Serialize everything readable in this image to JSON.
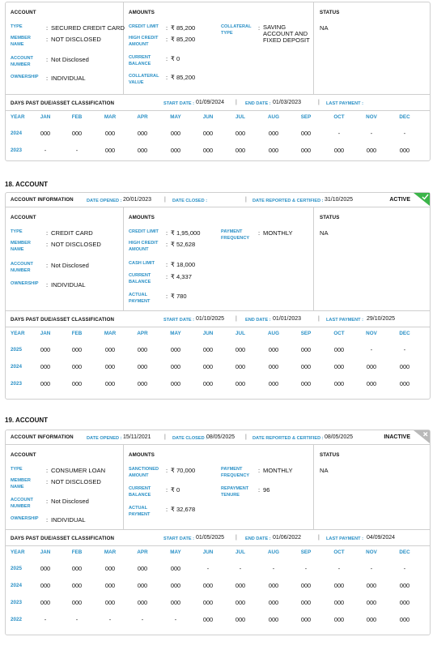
{
  "labels": {
    "account": "ACCOUNT",
    "amounts": "AMOUNTS",
    "status": "STATUS",
    "type": "TYPE",
    "member_name": "MEMBER NAME",
    "account_number": "ACCOUNT NUMBER",
    "ownership": "OWNERSHIP",
    "credit_limit": "CREDIT LIMIT",
    "high_credit_amount": "HIGH CREDIT AMOUNT",
    "current_balance": "CURRENT BALANCE",
    "collateral_value": "COLLATERAL VALUE",
    "collateral_type": "COLLATERAL TYPE",
    "cash_limit": "CASH LIMIT",
    "actual_payment": "ACTUAL PAYMENT",
    "payment_frequency": "PAYMENT FREQUENCY",
    "sanctioned_amount": "SANCTIONED AMOUNT",
    "repayment_tenure": "REPAYMENT TENURE",
    "account_information": "ACCOUNT INFORMATION",
    "date_opened": "DATE OPENED :",
    "date_closed": "DATE CLOSED :",
    "date_reported": "DATE REPORTED & CERTIFIED :",
    "dpd_title": "DAYS PAST DUE/ASSET CLASSIFICATION",
    "start_date": "START DATE :",
    "end_date": "END DATE :",
    "last_payment": "LAST PAYMENT :",
    "year": "YEAR",
    "months": [
      "JAN",
      "FEB",
      "MAR",
      "APR",
      "MAY",
      "JUN",
      "JUL",
      "AUG",
      "SEP",
      "OCT",
      "NOV",
      "DEC"
    ],
    "colon": ":",
    "pipe": "|"
  },
  "acc17": {
    "type": "SECURED CREDIT CARD",
    "member_name": "NOT DISCLOSED",
    "account_number": "Not Disclosed",
    "ownership": "INDIVIDUAL",
    "credit_limit": "₹ 85,200",
    "high_credit_amount": "₹ 85,200",
    "current_balance": "₹ 0",
    "collateral_value": "₹ 85,200",
    "collateral_type": "SAVING ACCOUNT AND FIXED DEPOSIT",
    "status": "NA",
    "start_date": "01/09/2024",
    "end_date": "01/03/2023",
    "last_payment": "",
    "rows": [
      {
        "year": "2024",
        "v": [
          "000",
          "000",
          "000",
          "000",
          "000",
          "000",
          "000",
          "000",
          "000",
          "-",
          "-",
          "-"
        ]
      },
      {
        "year": "2023",
        "v": [
          "-",
          "-",
          "000",
          "000",
          "000",
          "000",
          "000",
          "000",
          "000",
          "000",
          "000",
          "000"
        ]
      }
    ]
  },
  "acc18": {
    "title": "18. ACCOUNT",
    "date_opened": "20/01/2023",
    "date_closed": "",
    "date_reported": "31/10/2025",
    "state": "ACTIVE",
    "type": "CREDIT CARD",
    "member_name": "NOT DISCLOSED",
    "account_number": "Not Disclosed",
    "ownership": "INDIVIDUAL",
    "credit_limit": "₹ 1,95,000",
    "high_credit_amount": "₹ 52,628",
    "cash_limit": "₹ 18,000",
    "current_balance": "₹ 4,337",
    "actual_payment": "₹ 780",
    "payment_frequency": "MONTHLY",
    "status": "NA",
    "start_date": "01/10/2025",
    "end_date": "01/01/2023",
    "last_payment": "29/10/2025",
    "rows": [
      {
        "year": "2025",
        "v": [
          "000",
          "000",
          "000",
          "000",
          "000",
          "000",
          "000",
          "000",
          "000",
          "000",
          "-",
          "-"
        ]
      },
      {
        "year": "2024",
        "v": [
          "000",
          "000",
          "000",
          "000",
          "000",
          "000",
          "000",
          "000",
          "000",
          "000",
          "000",
          "000"
        ]
      },
      {
        "year": "2023",
        "v": [
          "000",
          "000",
          "000",
          "000",
          "000",
          "000",
          "000",
          "000",
          "000",
          "000",
          "000",
          "000"
        ]
      }
    ]
  },
  "acc19": {
    "title": "19. ACCOUNT",
    "date_opened": "15/11/2021",
    "date_closed": "08/05/2025",
    "date_reported": "08/05/2025",
    "state": "INACTIVE",
    "type": "CONSUMER LOAN",
    "member_name": "NOT DISCLOSED",
    "account_number": "Not Disclosed",
    "ownership": "INDIVIDUAL",
    "sanctioned_amount": "₹ 70,000",
    "current_balance": "₹ 0",
    "actual_payment": "₹ 32,678",
    "payment_frequency": "MONTHLY",
    "repayment_tenure": "96",
    "status": "NA",
    "start_date": "01/05/2025",
    "end_date": "01/06/2022",
    "last_payment": "04/09/2024",
    "rows": [
      {
        "year": "2025",
        "v": [
          "000",
          "000",
          "000",
          "000",
          "000",
          "-",
          "-",
          "-",
          "-",
          "-",
          "-",
          "-"
        ]
      },
      {
        "year": "2024",
        "v": [
          "000",
          "000",
          "000",
          "000",
          "000",
          "000",
          "000",
          "000",
          "000",
          "000",
          "000",
          "000"
        ]
      },
      {
        "year": "2023",
        "v": [
          "000",
          "000",
          "000",
          "000",
          "000",
          "000",
          "000",
          "000",
          "000",
          "000",
          "000",
          "000"
        ]
      },
      {
        "year": "2022",
        "v": [
          "-",
          "-",
          "-",
          "-",
          "-",
          "000",
          "000",
          "000",
          "000",
          "000",
          "000",
          "000"
        ]
      }
    ]
  },
  "colors": {
    "accent": "#2a90c6",
    "active": "#3cb54a",
    "inactive": "#b9b9b9",
    "border": "#cfcfcf"
  }
}
